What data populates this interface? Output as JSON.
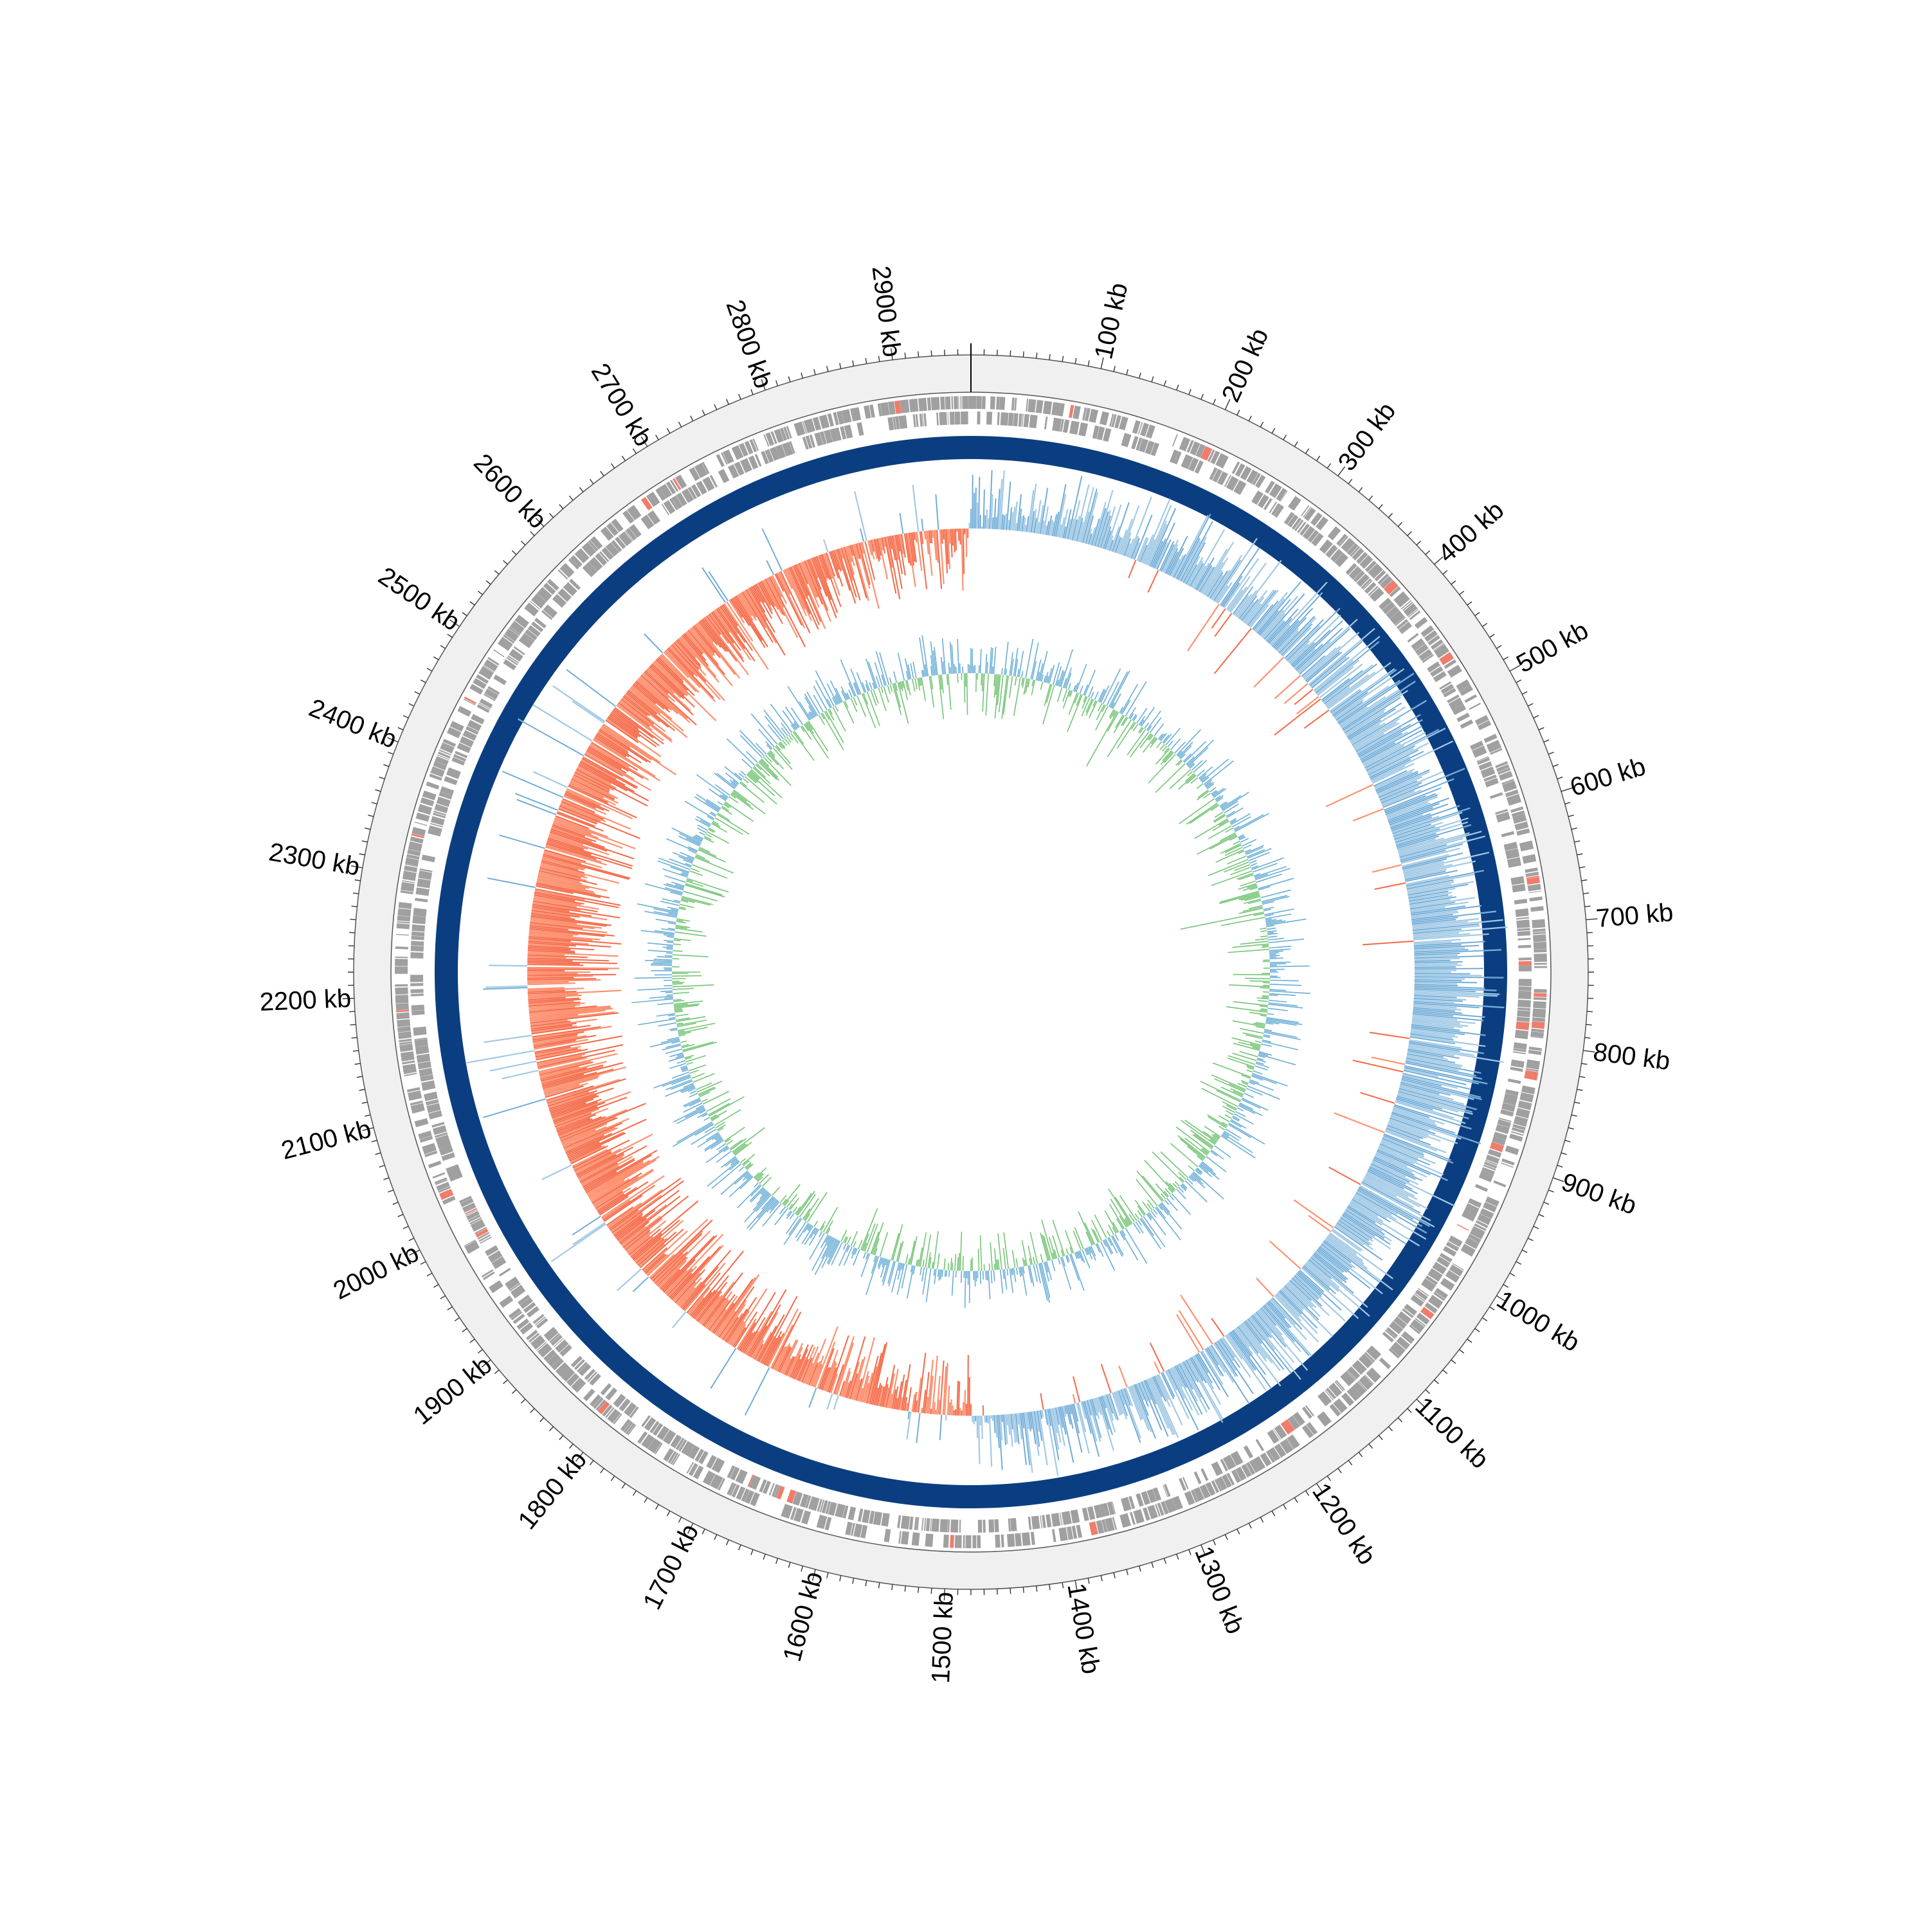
{
  "figure": {
    "genome_length_kb": 2960,
    "tick_labels": [
      "100 kb",
      "200 kb",
      "300 kb",
      "400 kb",
      "500 kb",
      "600 kb",
      "700 kb",
      "800 kb",
      "900 kb",
      "1000 kb",
      "1100 kb",
      "1200 kb",
      "1300 kb",
      "1400 kb",
      "1500 kb",
      "1600 kb",
      "1700 kb",
      "1800 kb",
      "1900 kb",
      "2000 kb",
      "2100 kb",
      "2200 kb",
      "2300 kb",
      "2400 kb",
      "2500 kb",
      "2600 kb",
      "2700 kb",
      "2800 kb",
      "2900 kb"
    ],
    "tracks": {
      "feature_color": "#a0a0a0",
      "feature_highlight_color": "#f07c6c",
      "outer_band_color": "#f0f0f0",
      "backbone_color": "#0b3e80",
      "gc_skew_positive_color": "#a3cae5",
      "gc_skew_positive_line_color": "#5b9fd2",
      "gc_skew_negative_color": "#fc9272",
      "gc_skew_negative_line_color": "#f05a3c",
      "gc_content_line_color": "#6aaed6",
      "gc_content_fill_color": "#74c476"
    }
  }
}
